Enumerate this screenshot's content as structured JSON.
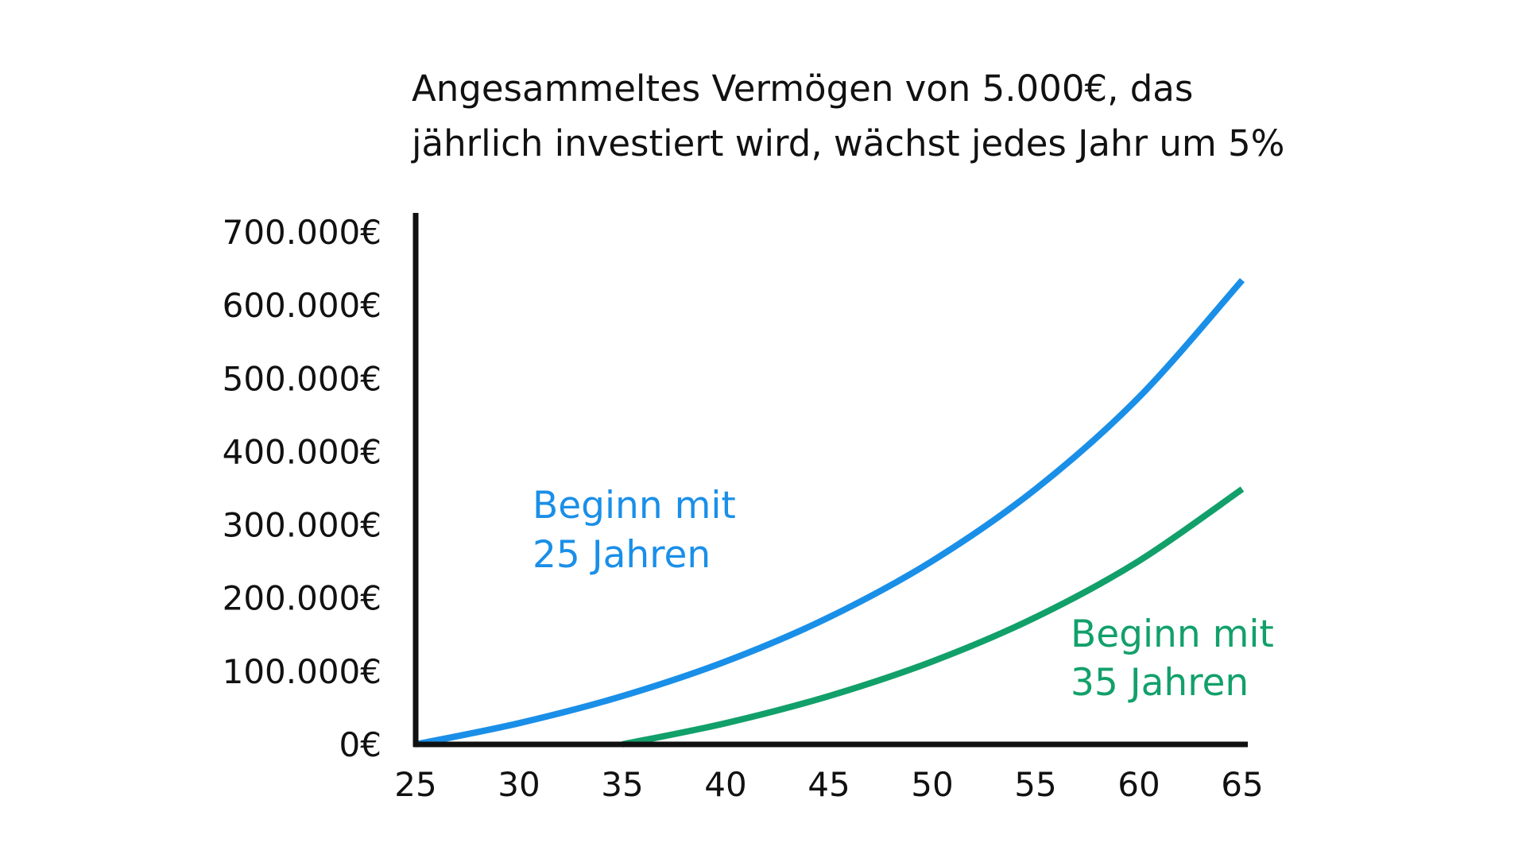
{
  "chart_data": {
    "type": "line",
    "title": [
      "Angesammeltes Vermögen von 5.000€, das",
      "jährlich investiert wird, wächst jedes Jahr um 5%"
    ],
    "xlabel": "",
    "ylabel": "",
    "xlim": [
      25,
      65
    ],
    "ylim": [
      0,
      700000
    ],
    "grid": false,
    "x_ticks": [
      25,
      30,
      35,
      40,
      45,
      50,
      55,
      60,
      65
    ],
    "x_tick_labels": [
      "25",
      "30",
      "35",
      "40",
      "45",
      "50",
      "55",
      "60",
      "65"
    ],
    "y_ticks": [
      0,
      100000,
      200000,
      300000,
      400000,
      500000,
      600000,
      700000
    ],
    "y_tick_labels": [
      "0€",
      "100.000€",
      "200.000€",
      "300.000€",
      "400.000€",
      "500.000€",
      "600.000€",
      "700.000€"
    ],
    "series": [
      {
        "name": "Beginn mit 25 Jahren",
        "label_lines": [
          "Beginn mit",
          "25 Jahren"
        ],
        "color": "#1a8fe8",
        "x": [
          25,
          30,
          35,
          40,
          45,
          50,
          55,
          60,
          65
        ],
        "values": [
          0,
          29010,
          66034,
          113287,
          173596,
          250567,
          348804,
          474182,
          634199
        ]
      },
      {
        "name": "Beginn mit 35 Jahren",
        "label_lines": [
          "Beginn mit",
          "35 Jahren"
        ],
        "color": "#12a06a",
        "x": [
          35,
          40,
          45,
          50,
          55,
          60,
          65
        ],
        "values": [
          0,
          29010,
          66034,
          113287,
          173596,
          250567,
          348804
        ]
      }
    ]
  }
}
